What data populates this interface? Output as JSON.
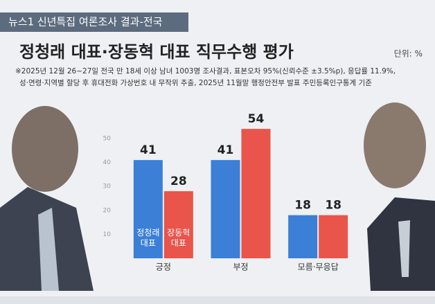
{
  "header": "뉴스1 신년특집 여론조사 결과-전국",
  "chart_data": {
    "type": "bar",
    "title": "정청래 대표·장동혁 대표 직무수행 평가",
    "unit": "단위: %",
    "notes": [
      "※2025년 12월 26~27일 전국 만 18세 이상 남녀 1003명 조사결과, 표본오차 95%(신뢰수준 ±3.5%p), 응답률 11.9%,",
      "성·연령·지역별 할당 후 휴대전화 가상번호 내 무작위 추출, 2025년 11월말 행정안전부 발표 주민등록인구통계 기준"
    ],
    "categories": [
      "긍정",
      "부정",
      "모름·무응답"
    ],
    "series": [
      {
        "name": "정청래 대표",
        "color": "#3b7fd6",
        "values": [
          41,
          41,
          18
        ]
      },
      {
        "name": "장동혁 대표",
        "color": "#e9544b",
        "values": [
          28,
          54,
          18
        ]
      }
    ],
    "ylim": [
      0,
      60
    ],
    "yticks": [
      10,
      20,
      30,
      40,
      50
    ],
    "grid": false
  }
}
